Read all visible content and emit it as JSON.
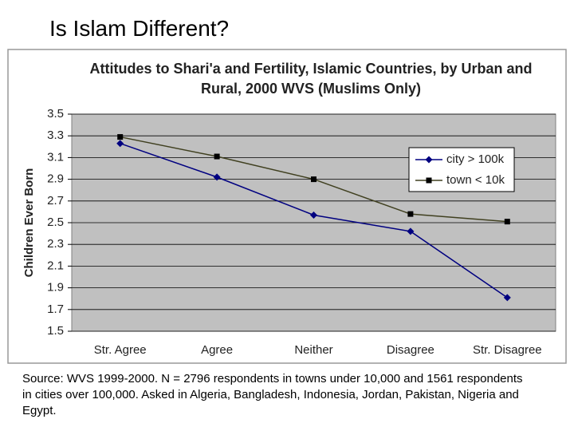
{
  "slide_title": "Is Islam Different?",
  "source": "Source: WVS 1999-2000. N = 2796 respondents in towns under 10,000 and 1561 respondents in cities over 100,000. Asked in Algeria, Bangladesh, Indonesia, Jordan, Pakistan, Nigeria and Egypt.",
  "chart_data": {
    "type": "line",
    "title": "Attitudes to Shari'a and Fertility, Islamic Countries, by Urban and Rural, 2000 WVS (Muslims Only)",
    "y_label": "Children Ever Born",
    "categories": [
      "Str. Agree",
      "Agree",
      "Neither",
      "Disagree",
      "Str. Disagree"
    ],
    "series": [
      {
        "name": "city > 100k",
        "color": "#000080",
        "marker": "diamond",
        "values": [
          3.23,
          2.92,
          2.57,
          2.42,
          1.81
        ]
      },
      {
        "name": "town < 10k",
        "color": "#404020",
        "marker": "square",
        "values": [
          3.29,
          3.11,
          2.9,
          2.58,
          2.51
        ]
      }
    ],
    "ylim": [
      1.5,
      3.5
    ],
    "yticks": [
      1.5,
      1.7,
      1.9,
      2.1,
      2.3,
      2.5,
      2.7,
      2.9,
      3.1,
      3.3,
      3.5
    ],
    "grid": true,
    "legend": "right"
  }
}
